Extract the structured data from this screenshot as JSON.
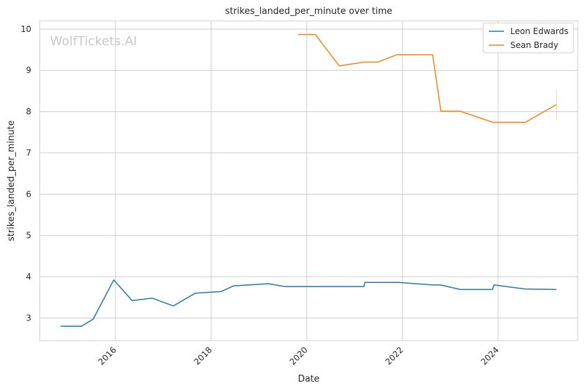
{
  "chart_data": {
    "type": "line",
    "title": "strikes_landed_per_minute over time",
    "xlabel": "Date",
    "ylabel": "strikes_landed_per_minute",
    "watermark": "WolfTickets.AI",
    "x_type": "date",
    "xlim": [
      "2014-06-01",
      "2025-09-01"
    ],
    "ylim": [
      2.45,
      10.2
    ],
    "xticks": [
      {
        "date": "2016-01-01",
        "label": "2016"
      },
      {
        "date": "2018-01-01",
        "label": "2018"
      },
      {
        "date": "2020-01-01",
        "label": "2020"
      },
      {
        "date": "2022-01-01",
        "label": "2022"
      },
      {
        "date": "2024-01-01",
        "label": "2024"
      }
    ],
    "yticks": [
      3,
      4,
      5,
      6,
      7,
      8,
      9,
      10
    ],
    "grid": true,
    "legend_position": "top-right",
    "series": [
      {
        "name": "Leon Edwards",
        "color": "#1f77b4",
        "points": [
          {
            "x": "2014-11-08",
            "y": 2.8
          },
          {
            "x": "2015-04-18",
            "y": 2.8
          },
          {
            "x": "2015-07-15",
            "y": 2.97
          },
          {
            "x": "2015-12-19",
            "y": 3.92
          },
          {
            "x": "2016-05-08",
            "y": 3.42
          },
          {
            "x": "2016-10-08",
            "y": 3.48
          },
          {
            "x": "2017-03-18",
            "y": 3.29
          },
          {
            "x": "2017-09-02",
            "y": 3.6
          },
          {
            "x": "2018-03-17",
            "y": 3.64
          },
          {
            "x": "2018-06-23",
            "y": 3.78
          },
          {
            "x": "2019-03-16",
            "y": 3.83
          },
          {
            "x": "2019-07-20",
            "y": 3.76
          },
          {
            "x": "2021-03-13",
            "y": 3.76
          },
          {
            "x": "2021-03-20",
            "y": 3.86
          },
          {
            "x": "2021-12-01",
            "y": 3.86
          },
          {
            "x": "2022-08-20",
            "y": 3.8
          },
          {
            "x": "2022-10-20",
            "y": 3.8
          },
          {
            "x": "2023-03-18",
            "y": 3.69
          },
          {
            "x": "2023-11-20",
            "y": 3.69
          },
          {
            "x": "2023-12-01",
            "y": 3.8
          },
          {
            "x": "2024-07-27",
            "y": 3.7
          },
          {
            "x": "2025-03-22",
            "y": 3.69
          }
        ]
      },
      {
        "name": "Sean Brady",
        "color": "#ff7f0e",
        "points": [
          {
            "x": "2019-10-26",
            "y": 9.87
          },
          {
            "x": "2020-03-07",
            "y": 9.87
          },
          {
            "x": "2020-09-05",
            "y": 9.11
          },
          {
            "x": "2021-03-13",
            "y": 9.2
          },
          {
            "x": "2021-06-26",
            "y": 9.2
          },
          {
            "x": "2021-11-20",
            "y": 9.38
          },
          {
            "x": "2022-08-20",
            "y": 9.38
          },
          {
            "x": "2022-10-22",
            "y": 8.01
          },
          {
            "x": "2023-03-18",
            "y": 8.01
          },
          {
            "x": "2023-11-25",
            "y": 7.74
          },
          {
            "x": "2024-07-27",
            "y": 7.74
          },
          {
            "x": "2025-03-22",
            "y": 8.17
          }
        ],
        "error_bar": {
          "x": "2025-03-22",
          "low": 7.79,
          "high": 8.53
        }
      }
    ]
  }
}
